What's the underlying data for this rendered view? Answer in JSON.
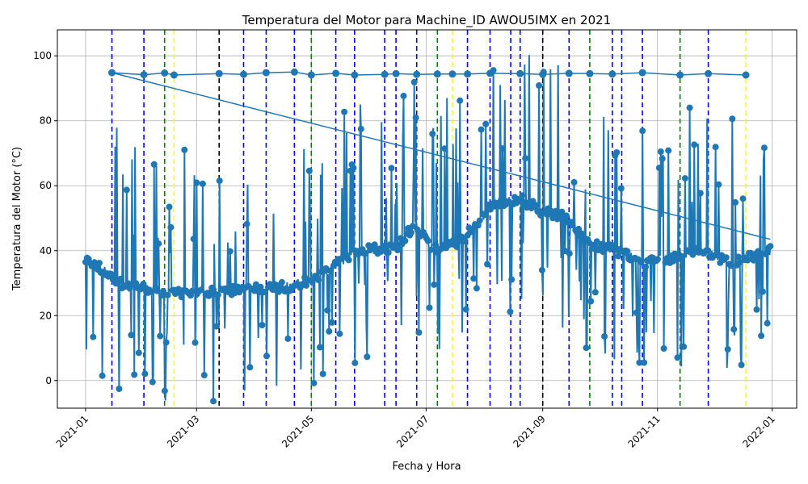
{
  "chart_data": {
    "type": "line",
    "title": "Temperatura del Motor para Machine_ID AWOU5IMX en 2021",
    "xlabel": "Fecha y Hora",
    "ylabel": "Temperatura del Motor (°C)",
    "x_ticks": [
      "2021-01",
      "2021-03",
      "2021-05",
      "2021-07",
      "2021-09",
      "2021-11",
      "2022-01"
    ],
    "x_range": [
      "2020-12-17",
      "2022-01-14"
    ],
    "y_ticks": [
      0,
      20,
      40,
      60,
      80,
      100
    ],
    "ylim": [
      -8.5,
      108
    ],
    "grid": true,
    "marker": "circle",
    "series": [
      {
        "color": "#1f77b4",
        "trend_points": [
          {
            "x": "2021-01-01",
            "y": 38
          },
          {
            "x": "2021-01-08",
            "y": 35
          },
          {
            "x": "2021-01-20",
            "y": 30
          },
          {
            "x": "2021-02-10",
            "y": 27
          },
          {
            "x": "2021-03-01",
            "y": 27
          },
          {
            "x": "2021-03-25",
            "y": 28
          },
          {
            "x": "2021-04-20",
            "y": 29
          },
          {
            "x": "2021-05-05",
            "y": 32
          },
          {
            "x": "2021-05-25",
            "y": 40
          },
          {
            "x": "2021-06-15",
            "y": 41
          },
          {
            "x": "2021-06-25",
            "y": 48
          },
          {
            "x": "2021-07-05",
            "y": 40
          },
          {
            "x": "2021-07-20",
            "y": 43
          },
          {
            "x": "2021-08-05",
            "y": 54
          },
          {
            "x": "2021-08-20",
            "y": 56
          },
          {
            "x": "2021-09-01",
            "y": 52
          },
          {
            "x": "2021-09-15",
            "y": 50
          },
          {
            "x": "2021-09-25",
            "y": 42
          },
          {
            "x": "2021-10-10",
            "y": 40
          },
          {
            "x": "2021-10-25",
            "y": 36
          },
          {
            "x": "2021-11-10",
            "y": 38
          },
          {
            "x": "2021-11-25",
            "y": 40
          },
          {
            "x": "2021-12-10",
            "y": 36
          },
          {
            "x": "2021-12-31",
            "y": 40
          }
        ],
        "high_points": [
          {
            "x": "2021-01-15",
            "y": 94.8
          },
          {
            "x": "2021-02-01",
            "y": 94.2
          },
          {
            "x": "2021-02-12",
            "y": 94.7
          },
          {
            "x": "2021-02-17",
            "y": 94.1
          },
          {
            "x": "2021-03-13",
            "y": 94.5
          },
          {
            "x": "2021-03-26",
            "y": 94.3
          },
          {
            "x": "2021-04-07",
            "y": 94.8
          },
          {
            "x": "2021-04-22",
            "y": 95.0
          },
          {
            "x": "2021-05-01",
            "y": 94.1
          },
          {
            "x": "2021-05-14",
            "y": 94.6
          },
          {
            "x": "2021-05-24",
            "y": 94.1
          },
          {
            "x": "2021-06-09",
            "y": 94.3
          },
          {
            "x": "2021-06-15",
            "y": 94.5
          },
          {
            "x": "2021-06-26",
            "y": 94.3
          },
          {
            "x": "2021-07-07",
            "y": 94.4
          },
          {
            "x": "2021-07-15",
            "y": 94.4
          },
          {
            "x": "2021-07-23",
            "y": 94.4
          },
          {
            "x": "2021-08-04",
            "y": 94.6
          },
          {
            "x": "2021-08-20",
            "y": 94.5
          },
          {
            "x": "2021-09-01",
            "y": 94.3
          },
          {
            "x": "2021-09-15",
            "y": 94.6
          },
          {
            "x": "2021-09-26",
            "y": 94.5
          },
          {
            "x": "2021-10-08",
            "y": 94.4
          },
          {
            "x": "2021-10-24",
            "y": 94.8
          },
          {
            "x": "2021-11-13",
            "y": 94.1
          },
          {
            "x": "2021-11-28",
            "y": 94.5
          },
          {
            "x": "2021-12-18",
            "y": 94.1
          }
        ],
        "return_line": [
          {
            "x": "2021-01-15",
            "y": 94.8
          },
          {
            "x": "2021-12-31",
            "y": 43.5
          }
        ]
      }
    ],
    "vertical_lines": [
      {
        "x": "2021-01-15",
        "color": "#0000ff"
      },
      {
        "x": "2021-02-01",
        "color": "#0000ff"
      },
      {
        "x": "2021-02-12",
        "color": "#008000"
      },
      {
        "x": "2021-02-17",
        "color": "#ffff00"
      },
      {
        "x": "2021-03-13",
        "color": "#000000"
      },
      {
        "x": "2021-03-26",
        "color": "#0000ff"
      },
      {
        "x": "2021-04-07",
        "color": "#0000ff"
      },
      {
        "x": "2021-04-22",
        "color": "#0000ff"
      },
      {
        "x": "2021-05-01",
        "color": "#008000"
      },
      {
        "x": "2021-05-14",
        "color": "#0000ff"
      },
      {
        "x": "2021-05-24",
        "color": "#0000ff"
      },
      {
        "x": "2021-06-09",
        "color": "#0000ff"
      },
      {
        "x": "2021-06-15",
        "color": "#0000ff"
      },
      {
        "x": "2021-06-26",
        "color": "#0000ff"
      },
      {
        "x": "2021-07-07",
        "color": "#008000"
      },
      {
        "x": "2021-07-15",
        "color": "#ffff00"
      },
      {
        "x": "2021-07-23",
        "color": "#0000ff"
      },
      {
        "x": "2021-08-04",
        "color": "#0000ff"
      },
      {
        "x": "2021-08-15",
        "color": "#0000ff"
      },
      {
        "x": "2021-08-20",
        "color": "#0000ff"
      },
      {
        "x": "2021-09-01",
        "color": "#000000"
      },
      {
        "x": "2021-09-15",
        "color": "#0000ff"
      },
      {
        "x": "2021-09-26",
        "color": "#008000"
      },
      {
        "x": "2021-10-08",
        "color": "#0000ff"
      },
      {
        "x": "2021-10-13",
        "color": "#0000ff"
      },
      {
        "x": "2021-10-24",
        "color": "#0000ff"
      },
      {
        "x": "2021-11-13",
        "color": "#008000"
      },
      {
        "x": "2021-11-28",
        "color": "#0000ff"
      },
      {
        "x": "2021-12-18",
        "color": "#ffff00"
      }
    ]
  }
}
